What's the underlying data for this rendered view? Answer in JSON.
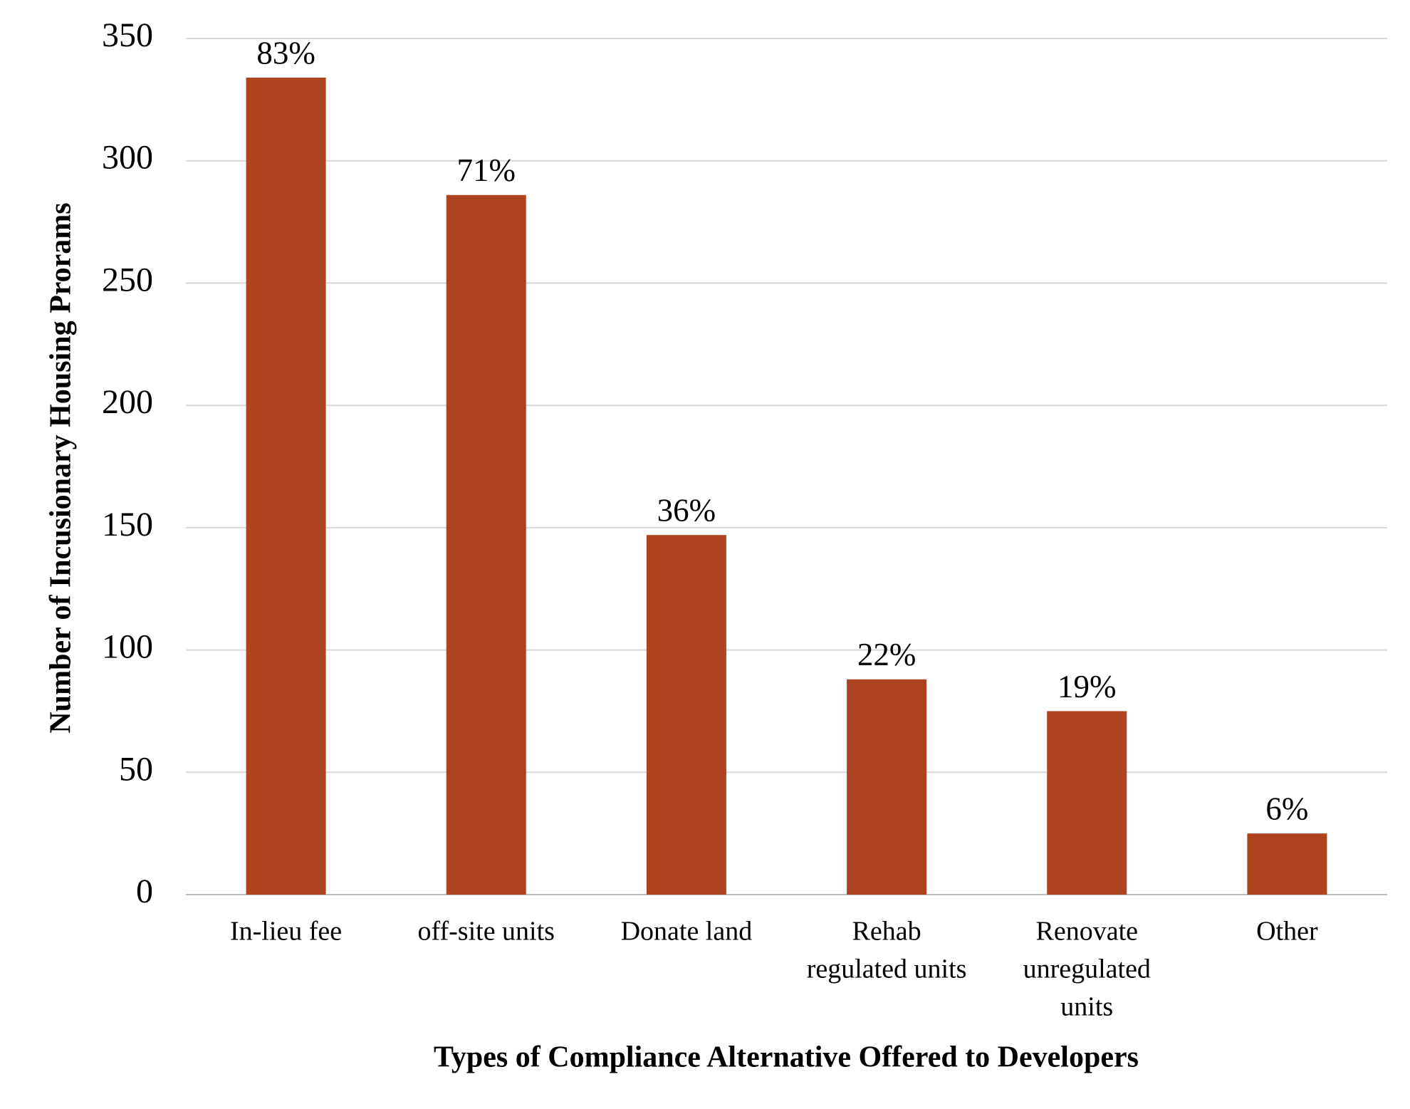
{
  "chart_data": {
    "type": "bar",
    "xlabel": "Types of Compliance Alternative Offered to Developers",
    "ylabel": "Number of Incusionary Housing Prorams",
    "categories": [
      [
        "In-lieu fee"
      ],
      [
        "off-site units"
      ],
      [
        "Donate land"
      ],
      [
        "Rehab",
        "regulated units"
      ],
      [
        "Renovate",
        "unregulated",
        "units"
      ],
      [
        "Other"
      ]
    ],
    "values": [
      334,
      286,
      147,
      88,
      75,
      25
    ],
    "data_labels": [
      "83%",
      "71%",
      "36%",
      "22%",
      "19%",
      "6%"
    ],
    "color": "#ad441f",
    "ylim": [
      0,
      350
    ],
    "yticks": [
      0,
      50,
      100,
      150,
      200,
      250,
      300,
      350
    ],
    "grid": true
  }
}
